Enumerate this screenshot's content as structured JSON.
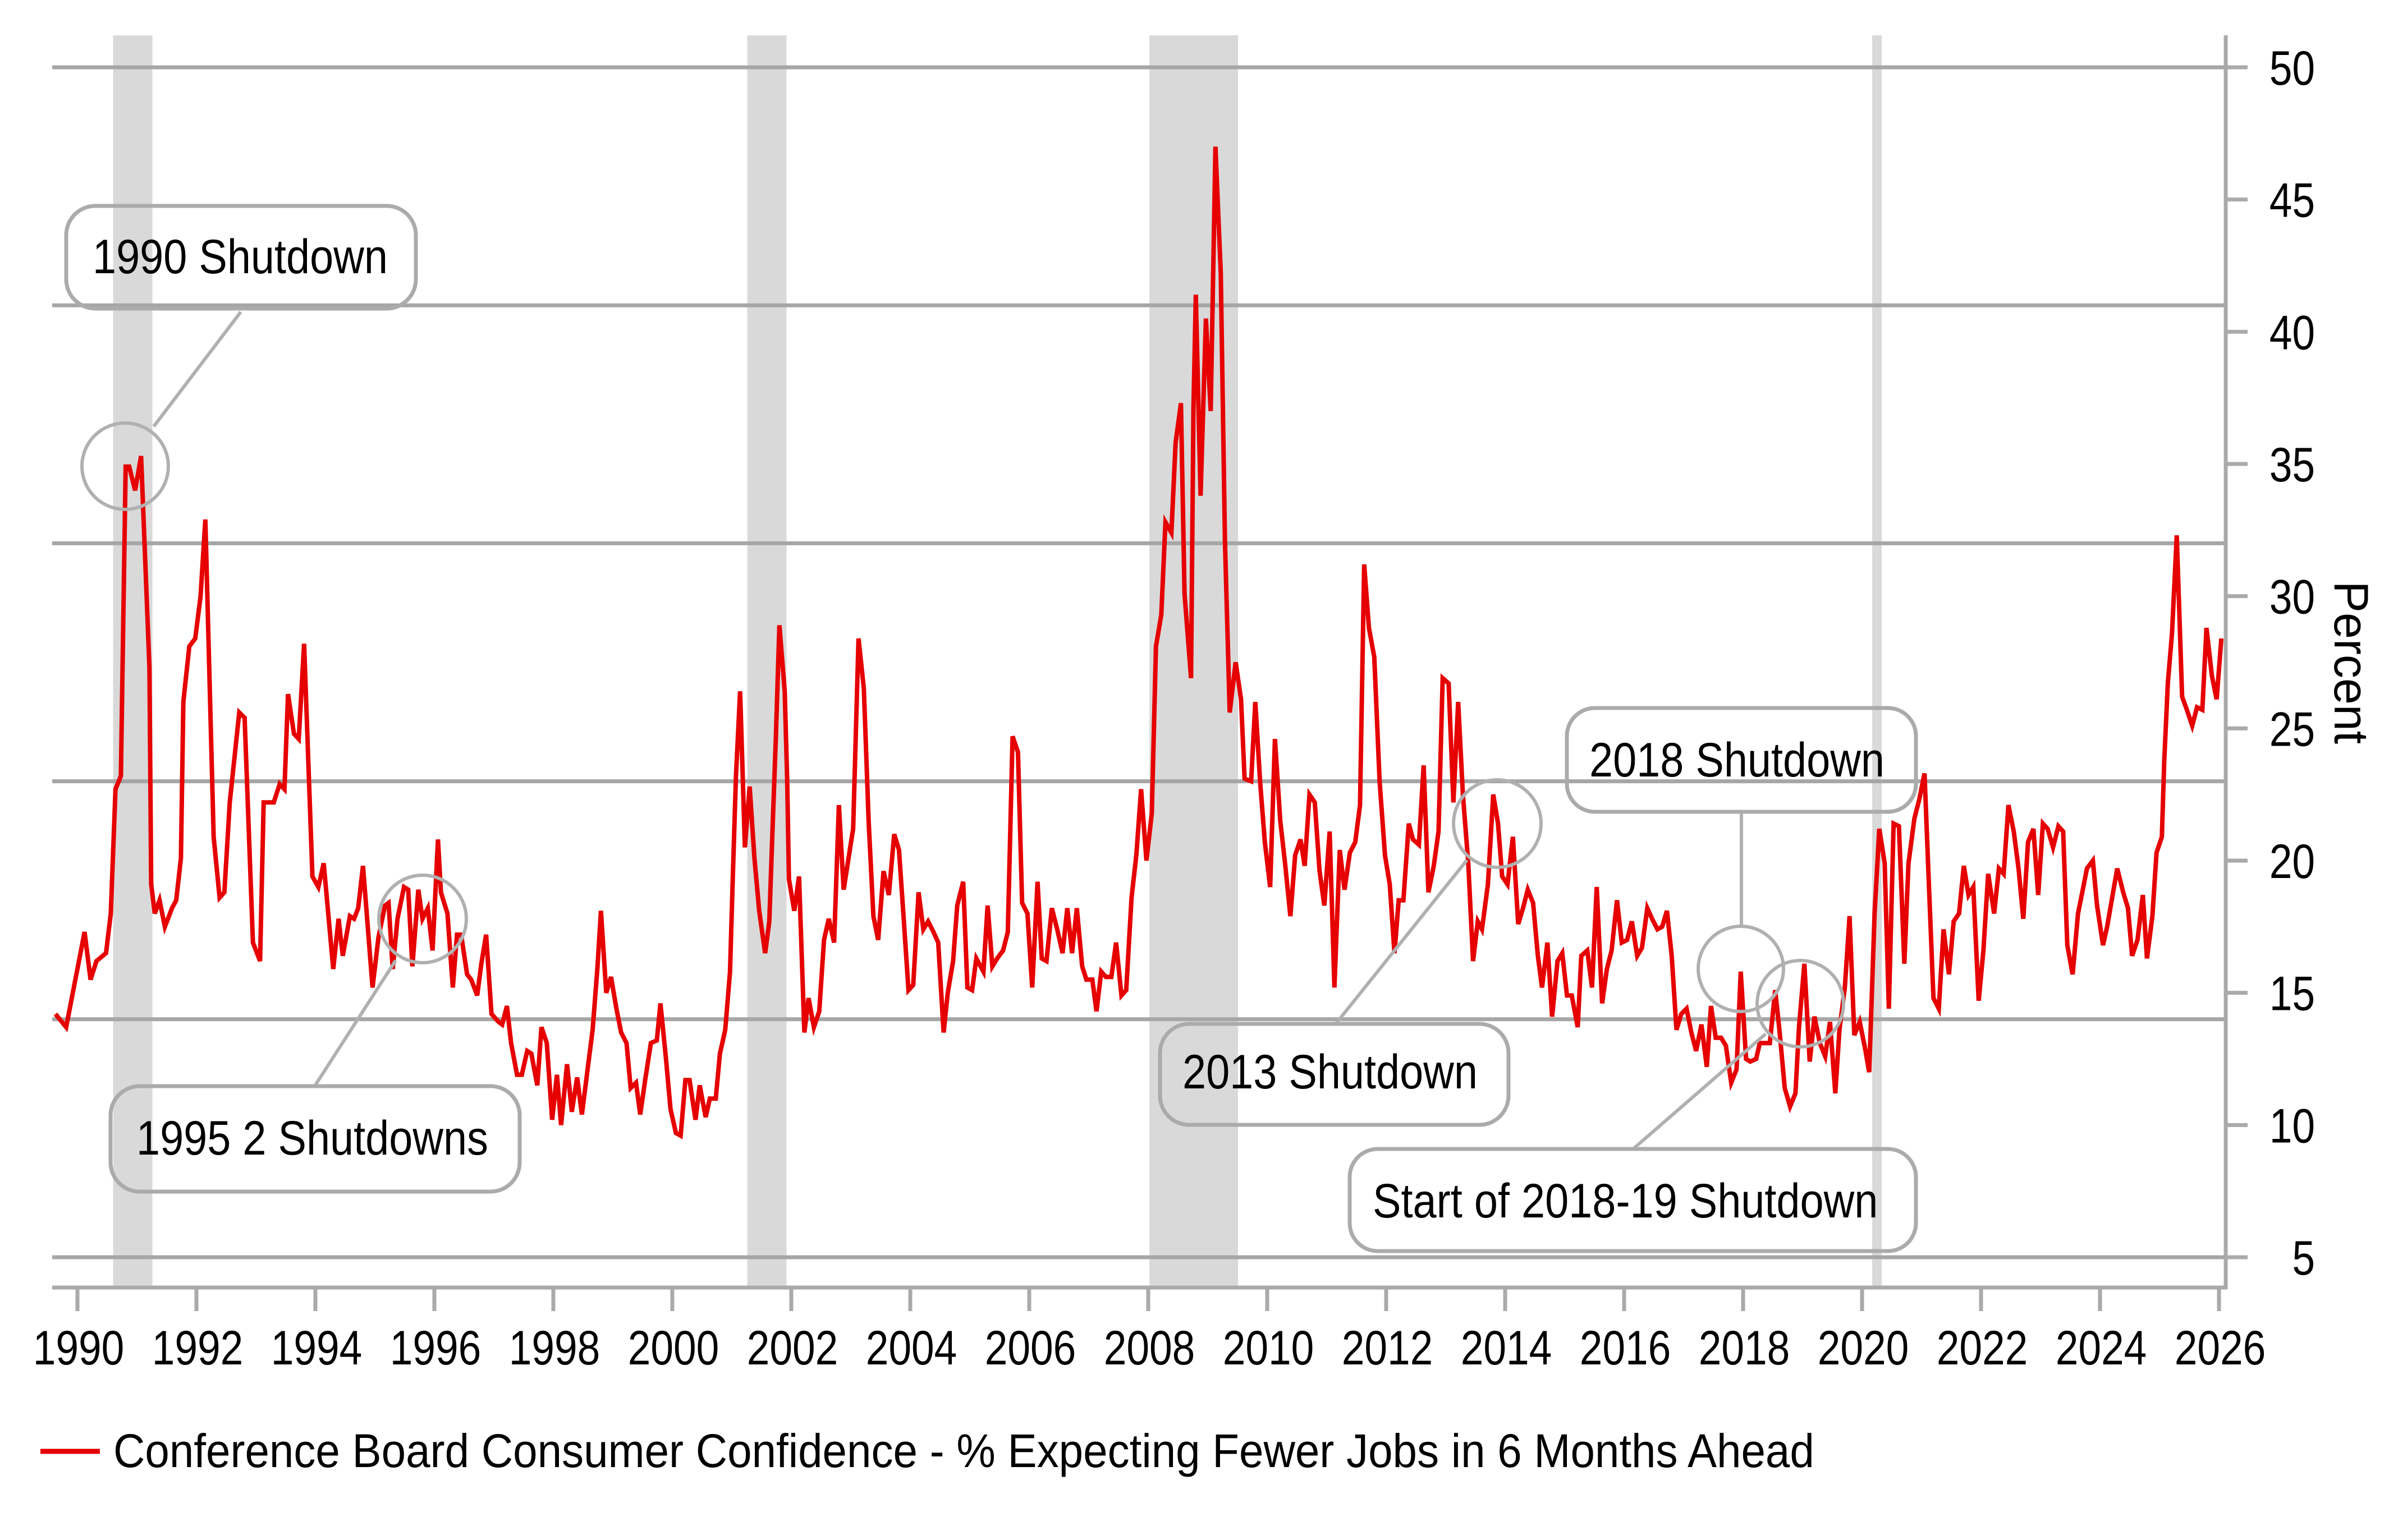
{
  "chart_data": {
    "type": "line",
    "title": "",
    "xlabel": "",
    "ylabel": "Percent",
    "y_axis_side": "right",
    "xlim": [
      1989.58,
      2026.11
    ],
    "ylim": [
      3.85,
      51.2
    ],
    "x_ticks": [
      "1990",
      "1992",
      "1994",
      "1996",
      "1998",
      "2000",
      "2002",
      "2004",
      "2006",
      "2008",
      "2010",
      "2012",
      "2014",
      "2016",
      "2018",
      "2020",
      "2022",
      "2024",
      "2026"
    ],
    "y_ticks": [
      "5",
      "10",
      "15",
      "20",
      "25",
      "30",
      "35",
      "40",
      "45",
      "50"
    ],
    "grid": true,
    "gridline_values": [
      5,
      14,
      23,
      32,
      41,
      50
    ],
    "legend": {
      "position": "bottom-left",
      "entries": [
        {
          "label": "Conference Board Consumer Confidence - % Expecting Fewer Jobs in 6 Months Ahead",
          "color": "#e60000"
        }
      ]
    },
    "shaded_periods": [
      {
        "start": 1990.6,
        "end": 1991.26,
        "color": "#d9d9d9"
      },
      {
        "start": 2001.26,
        "end": 2001.92,
        "color": "#d9d9d9"
      },
      {
        "start": 2008.02,
        "end": 2009.51,
        "color": "#d9d9d9"
      },
      {
        "start": 2020.17,
        "end": 2020.33,
        "color": "#d9d9d9"
      }
    ],
    "annotations": [
      {
        "label": "1990 Shutdown"
      },
      {
        "label": "1995 2 Shutdowns"
      },
      {
        "label": "2013 Shutdown"
      },
      {
        "label": "2018 Shutdown"
      },
      {
        "label": "Start of 2018-19 Shutdown"
      }
    ],
    "series": [
      {
        "name": "Conference Board Consumer Confidence - % Expecting Fewer Jobs in 6 Months Ahead",
        "color": "#e60000",
        "x": [
          1989.63,
          1989.81,
          1990.12,
          1990.22,
          1990.32,
          1990.48,
          1990.56,
          1990.64,
          1990.73,
          1990.81,
          1990.87,
          1990.97,
          1991.07,
          1991.21,
          1991.24,
          1991.3,
          1991.38,
          1991.47,
          1991.59,
          1991.66,
          1991.74,
          1991.78,
          1991.88,
          1991.98,
          1992.07,
          1992.15,
          1992.29,
          1992.39,
          1992.47,
          1992.56,
          1992.72,
          1992.81,
          1992.95,
          1993.07,
          1993.13,
          1993.3,
          1993.4,
          1993.48,
          1993.54,
          1993.64,
          1993.72,
          1993.81,
          1993.95,
          1994.05,
          1994.14,
          1994.3,
          1994.39,
          1994.46,
          1994.58,
          1994.65,
          1994.72,
          1994.8,
          1994.96,
          1995.06,
          1995.17,
          1995.23,
          1995.3,
          1995.38,
          1995.49,
          1995.56,
          1995.63,
          1995.73,
          1995.8,
          1995.89,
          1995.97,
          1996.06,
          1996.11,
          1996.22,
          1996.31,
          1996.38,
          1996.45,
          1996.55,
          1996.62,
          1996.72,
          1996.79,
          1996.87,
          1996.96,
          1997.08,
          1997.14,
          1997.22,
          1997.29,
          1997.39,
          1997.47,
          1997.56,
          1997.63,
          1997.73,
          1997.8,
          1997.89,
          1997.98,
          1998.06,
          1998.13,
          1998.23,
          1998.31,
          1998.4,
          1998.48,
          1998.57,
          1998.66,
          1998.74,
          1998.8,
          1998.89,
          1998.97,
          1999.06,
          1999.14,
          1999.23,
          1999.3,
          1999.39,
          1999.46,
          1999.55,
          1999.64,
          1999.74,
          1999.8,
          1999.89,
          1999.97,
          2000.06,
          2000.14,
          2000.22,
          2000.29,
          2000.39,
          2000.46,
          2000.56,
          2000.63,
          2000.73,
          2000.8,
          2000.89,
          2000.97,
          2001.02,
          2001.07,
          2001.14,
          2001.22,
          2001.3,
          2001.38,
          2001.46,
          2001.56,
          2001.63,
          2001.69,
          2001.74,
          2001.8,
          2001.89,
          2001.93,
          2001.96,
          2002.05,
          2002.13,
          2002.22,
          2002.29,
          2002.38,
          2002.47,
          2002.55,
          2002.63,
          2002.72,
          2002.8,
          2002.88,
          2002.97,
          2003.04,
          2003.13,
          2003.22,
          2003.3,
          2003.38,
          2003.46,
          2003.55,
          2003.64,
          2003.73,
          2003.81,
          2003.89,
          2003.97,
          2004.05,
          2004.14,
          2004.22,
          2004.3,
          2004.39,
          2004.47,
          2004.56,
          2004.63,
          2004.72,
          2004.79,
          2004.89,
          2004.96,
          2005.04,
          2005.11,
          2005.23,
          2005.3,
          2005.38,
          2005.46,
          2005.56,
          2005.64,
          2005.72,
          2005.81,
          2005.88,
          2005.97,
          2006.05,
          2006.14,
          2006.21,
          2006.29,
          2006.38,
          2006.47,
          2006.56,
          2006.64,
          2006.72,
          2006.8,
          2006.89,
          2006.96,
          2007.06,
          2007.13,
          2007.21,
          2007.29,
          2007.38,
          2007.46,
          2007.55,
          2007.63,
          2007.72,
          2007.8,
          2007.88,
          2007.97,
          2008.06,
          2008.13,
          2008.22,
          2008.29,
          2008.39,
          2008.46,
          2008.55,
          2008.61,
          2008.72,
          2008.76,
          2008.8,
          2008.88,
          2008.97,
          2009.05,
          2009.13,
          2009.22,
          2009.29,
          2009.37,
          2009.47,
          2009.56,
          2009.62,
          2009.73,
          2009.8,
          2009.88,
          2009.96,
          2010.05,
          2010.13,
          2010.22,
          2010.3,
          2010.39,
          2010.47,
          2010.56,
          2010.63,
          2010.71,
          2010.8,
          2010.88,
          2010.96,
          2011.05,
          2011.13,
          2011.22,
          2011.3,
          2011.39,
          2011.48,
          2011.56,
          2011.63,
          2011.71,
          2011.8,
          2011.89,
          2011.98,
          2012.06,
          2012.14,
          2012.21,
          2012.29,
          2012.38,
          2012.45,
          2012.55,
          2012.63,
          2012.71,
          2012.8,
          2012.88,
          2012.95,
          2013.05,
          2013.13,
          2013.21,
          2013.29,
          2013.38,
          2013.46,
          2013.54,
          2013.61,
          2013.71,
          2013.8,
          2013.88,
          2013.95,
          2014.04,
          2014.13,
          2014.22,
          2014.3,
          2014.38,
          2014.47,
          2014.55,
          2014.62,
          2014.71,
          2014.79,
          2014.88,
          2014.96,
          2015.04,
          2015.12,
          2015.22,
          2015.28,
          2015.38,
          2015.46,
          2015.54,
          2015.63,
          2015.71,
          2015.79,
          2015.88,
          2015.96,
          2016.05,
          2016.13,
          2016.22,
          2016.3,
          2016.39,
          2016.47,
          2016.56,
          2016.64,
          2016.72,
          2016.8,
          2016.88,
          2016.96,
          2017.05,
          2017.13,
          2017.21,
          2017.3,
          2017.39,
          2017.46,
          2017.54,
          2017.63,
          2017.71,
          2017.8,
          2017.89,
          2017.96,
          2018.05,
          2018.12,
          2018.22,
          2018.28,
          2018.37,
          2018.45,
          2018.54,
          2018.61,
          2018.7,
          2018.79,
          2018.88,
          2018.94,
          2019.03,
          2019.12,
          2019.2,
          2019.29,
          2019.38,
          2019.46,
          2019.55,
          2019.62,
          2019.71,
          2019.79,
          2019.87,
          2019.96,
          2020.05,
          2020.12,
          2020.21,
          2020.29,
          2020.38,
          2020.45,
          2020.53,
          2020.62,
          2020.71,
          2020.78,
          2020.88,
          2020.96,
          2021.05,
          2021.12,
          2021.2,
          2021.29,
          2021.37,
          2021.46,
          2021.54,
          2021.63,
          2021.71,
          2021.79,
          2021.87,
          2021.96,
          2022.04,
          2022.12,
          2022.22,
          2022.3,
          2022.38,
          2022.46,
          2022.55,
          2022.63,
          2022.71,
          2022.79,
          2022.88,
          2022.96,
          2023.04,
          2023.12,
          2023.21,
          2023.3,
          2023.38,
          2023.45,
          2023.54,
          2023.63,
          2023.71,
          2023.78,
          2023.88,
          2023.95,
          2024.05,
          2024.12,
          2024.22,
          2024.29,
          2024.39,
          2024.47,
          2024.54,
          2024.63,
          2024.72,
          2024.79,
          2024.88,
          2024.95,
          2025.04,
          2025.08,
          2025.14,
          2025.21,
          2025.29,
          2025.38,
          2025.46,
          2025.55,
          2025.63,
          2025.72,
          2025.79,
          2025.88,
          2025.96,
          2026.04
        ],
        "y": [
          14.2,
          13.7,
          17.3,
          15.5,
          16.2,
          16.5,
          18.0,
          22.7,
          23.2,
          34.9,
          34.9,
          34.0,
          35.3,
          27.3,
          19.1,
          18.0,
          18.5,
          17.5,
          18.2,
          18.5,
          20.1,
          26.0,
          28.1,
          28.4,
          30.0,
          32.9,
          20.9,
          18.6,
          18.8,
          22.2,
          25.6,
          25.4,
          16.9,
          16.2,
          22.2,
          22.2,
          22.9,
          22.7,
          26.3,
          24.8,
          24.6,
          28.2,
          19.4,
          19.0,
          19.9,
          15.9,
          17.8,
          16.4,
          17.9,
          17.8,
          18.2,
          19.8,
          15.2,
          17.1,
          18.3,
          18.4,
          15.9,
          17.8,
          19.0,
          18.9,
          16.0,
          18.9,
          17.8,
          18.2,
          16.6,
          20.8,
          18.8,
          18.0,
          15.2,
          17.2,
          17.2,
          15.7,
          15.5,
          14.9,
          16.1,
          17.2,
          14.2,
          13.9,
          13.8,
          14.5,
          13.1,
          11.9,
          11.9,
          12.8,
          12.7,
          11.5,
          13.7,
          13.1,
          10.2,
          11.9,
          10.0,
          12.3,
          10.5,
          11.8,
          10.4,
          12.0,
          13.6,
          15.9,
          18.1,
          15.0,
          15.6,
          14.4,
          13.5,
          13.1,
          11.4,
          11.6,
          10.4,
          11.8,
          13.1,
          13.2,
          14.6,
          12.6,
          10.6,
          9.7,
          9.6,
          11.7,
          11.7,
          10.2,
          11.5,
          10.3,
          11.0,
          11.0,
          12.7,
          13.6,
          15.8,
          19.6,
          23.2,
          26.4,
          20.5,
          22.8,
          20.1,
          18.1,
          16.5,
          17.7,
          21.5,
          24.6,
          28.9,
          26.4,
          23.1,
          19.3,
          18.1,
          19.4,
          13.5,
          14.8,
          13.7,
          14.3,
          17.0,
          17.8,
          16.9,
          22.1,
          18.9,
          20.2,
          21.2,
          28.4,
          26.5,
          21.5,
          17.9,
          17.0,
          19.6,
          18.7,
          21.0,
          20.4,
          17.8,
          15.1,
          15.3,
          18.8,
          17.4,
          17.7,
          17.3,
          16.9,
          13.5,
          15.0,
          16.2,
          18.3,
          19.2,
          15.2,
          15.1,
          16.3,
          15.8,
          18.3,
          16.0,
          16.3,
          16.6,
          17.3,
          24.7,
          24.1,
          18.4,
          18.0,
          15.2,
          19.2,
          16.3,
          16.2,
          18.2,
          17.4,
          16.5,
          18.2,
          16.5,
          18.2,
          16.0,
          15.5,
          15.5,
          14.3,
          15.8,
          15.6,
          15.6,
          16.9,
          14.9,
          15.1,
          18.6,
          20.2,
          22.7,
          20.0,
          21.8,
          28.1,
          29.3,
          32.8,
          32.4,
          35.8,
          37.3,
          30.1,
          26.9,
          37.1,
          41.4,
          33.8,
          40.5,
          37.0,
          47.0,
          42.2,
          32.1,
          25.6,
          27.5,
          26.1,
          23.1,
          23.0,
          26.0,
          23.0,
          20.7,
          19.0,
          24.6,
          21.5,
          19.9,
          17.9,
          20.2,
          20.8,
          19.8,
          22.5,
          22.2,
          19.6,
          18.3,
          21.1,
          15.2,
          20.4,
          18.9,
          20.3,
          20.7,
          22.1,
          31.2,
          28.8,
          27.7,
          23.0,
          20.2,
          19.1,
          16.5,
          18.5,
          18.5,
          21.4,
          20.8,
          20.6,
          23.6,
          18.8,
          19.8,
          21.1,
          26.9,
          26.7,
          22.2,
          26.0,
          22.5,
          19.9,
          16.2,
          17.7,
          17.4,
          19.1,
          22.5,
          21.4,
          19.4,
          19.1,
          20.9,
          17.6,
          18.2,
          18.9,
          18.4,
          16.4,
          15.2,
          16.9,
          14.1,
          16.2,
          16.5,
          14.9,
          14.9,
          13.7,
          16.4,
          16.6,
          15.2,
          19.0,
          14.6,
          15.9,
          16.6,
          18.5,
          16.9,
          17.0,
          17.7,
          16.4,
          16.7,
          18.2,
          17.8,
          17.4,
          17.5,
          18.1,
          16.4,
          13.6,
          14.2,
          14.4,
          13.5,
          12.8,
          13.8,
          12.2,
          14.5,
          13.3,
          13.3,
          13.0,
          11.6,
          12.1,
          15.8,
          12.5,
          12.4,
          12.5,
          13.1,
          13.1,
          13.1,
          15.1,
          13.6,
          11.4,
          10.7,
          11.2,
          13.7,
          16.1,
          12.4,
          14.1,
          13.1,
          12.6,
          13.9,
          11.2,
          13.6,
          15.2,
          17.9,
          13.4,
          13.9,
          12.9,
          12.0,
          18.0,
          21.2,
          19.9,
          14.4,
          21.4,
          21.3,
          16.1,
          19.9,
          21.6,
          22.3,
          23.3,
          19.3,
          14.8,
          14.4,
          17.4,
          15.7,
          17.7,
          18.0,
          19.8,
          18.7,
          19.0,
          14.7,
          16.6,
          19.5,
          18.0,
          19.7,
          19.5,
          22.1,
          21.1,
          19.7,
          17.8,
          20.7,
          21.2,
          18.7,
          21.4,
          21.2,
          20.5,
          21.3,
          21.1,
          16.8,
          15.7,
          18.0,
          18.9,
          19.7,
          20.0,
          18.3,
          16.8,
          17.5,
          18.8,
          19.7,
          18.8,
          18.2,
          16.4,
          17.0,
          18.7,
          16.3,
          17.9,
          20.3,
          20.9,
          23.8,
          26.7,
          28.6,
          32.3,
          26.2,
          25.7,
          25.1,
          25.8,
          25.7,
          28.8,
          27.0,
          26.1,
          28.4
        ]
      }
    ]
  }
}
